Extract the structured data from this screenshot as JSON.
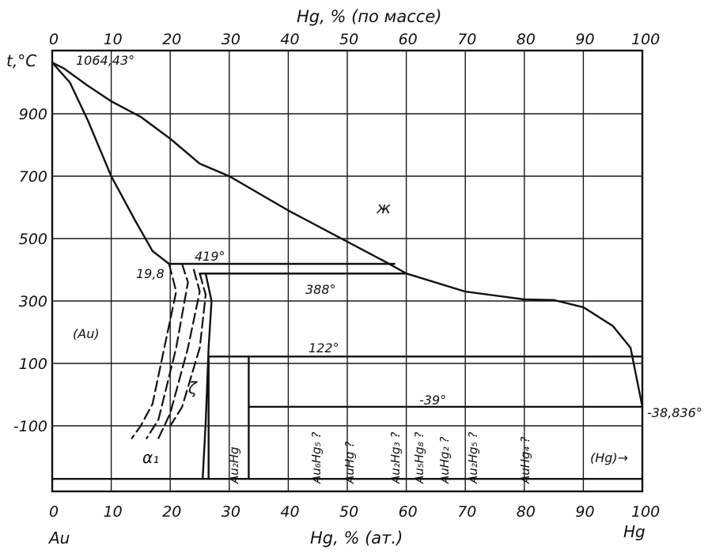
{
  "chart_data": {
    "type": "line",
    "title": "",
    "x_top_label": "Hg, % (по массе)",
    "x_bottom_label": "Hg, % (ат.)",
    "y_label": "t,°C",
    "left_component": "Au",
    "right_component": "Hg",
    "x_ticks": [
      0,
      10,
      20,
      30,
      40,
      50,
      60,
      70,
      80,
      90,
      100
    ],
    "x_top_ticks": [
      0,
      10,
      20,
      30,
      40,
      50,
      60,
      70,
      80,
      90,
      100
    ],
    "y_ticks": [
      900,
      700,
      500,
      300,
      100,
      -100
    ],
    "xlim": [
      0,
      100
    ],
    "ylim": [
      -280,
      1100
    ],
    "grid": true,
    "annotations": {
      "au_melting": "1064,43°",
      "peritectic_419": "419°",
      "peritectic_388": "388°",
      "peritectic_122": "122°",
      "eutectic_minus39": "-39°",
      "hg_melting": "-38,836°",
      "solubility": "19,8",
      "liquid_phase": "ж",
      "au_solid_solution": "(Au)",
      "zeta_phase": "ζ",
      "alpha1_phase": "α₁",
      "hg_phase": "(Hg)→"
    },
    "compounds": [
      {
        "label": "Au₂Hg",
        "x": 33.3
      },
      {
        "label": "Au₆Hg₅ ?",
        "x": 45.5
      },
      {
        "label": "AuHg ?",
        "x": 50
      },
      {
        "label": "Au₂Hg₃ ?",
        "x": 60
      },
      {
        "label": "Au₅Hg₈ ?",
        "x": 61.5
      },
      {
        "label": "AuHg₂ ?",
        "x": 66.7
      },
      {
        "label": "Au₂Hg₅ ?",
        "x": 71.4
      },
      {
        "label": "AuHg₄ ?",
        "x": 80
      }
    ],
    "series": [
      {
        "values": [
          [
            0,
            1064
          ],
          [
            2,
            1045
          ],
          [
            6,
            990
          ],
          [
            10,
            940
          ],
          [
            15,
            890
          ],
          [
            20,
            820
          ],
          [
            25,
            740
          ],
          [
            30,
            700
          ],
          [
            40,
            590
          ],
          [
            50,
            490
          ],
          [
            57,
            420
          ],
          [
            60,
            388
          ],
          [
            70,
            330
          ],
          [
            80,
            305
          ],
          [
            85,
            303
          ],
          [
            90,
            280
          ],
          [
            95,
            220
          ],
          [
            98,
            150
          ],
          [
            100,
            -39
          ]
        ]
      },
      {
        "values": [
          [
            0,
            1064
          ],
          [
            3,
            1000
          ],
          [
            6,
            880
          ],
          [
            10,
            700
          ],
          [
            14,
            560
          ],
          [
            17,
            460
          ],
          [
            19.8,
            419
          ]
        ]
      },
      {
        "values": [
          [
            19.8,
            419
          ],
          [
            21,
            330
          ],
          [
            19,
            150
          ],
          [
            17,
            -30
          ],
          [
            15,
            -100
          ],
          [
            13.5,
            -140
          ]
        ]
      },
      {
        "values": [
          [
            22,
            419
          ],
          [
            23,
            360
          ],
          [
            21,
            150
          ],
          [
            18,
            -80
          ],
          [
            16,
            -140
          ]
        ]
      },
      {
        "values": [
          [
            24,
            400
          ],
          [
            25,
            330
          ],
          [
            23,
            150
          ],
          [
            20,
            -60
          ],
          [
            18,
            -140
          ]
        ]
      },
      {
        "values": [
          [
            25,
            388
          ],
          [
            26,
            320
          ],
          [
            25,
            150
          ],
          [
            22,
            -40
          ],
          [
            20,
            -100
          ]
        ]
      },
      {
        "values": [
          [
            26,
            388
          ],
          [
            27,
            300
          ],
          [
            26.5,
            150
          ],
          [
            26,
            -90
          ],
          [
            25.5,
            -270
          ]
        ]
      }
    ],
    "horizontals": [
      {
        "temp": 419,
        "x": [
          19.8,
          58
        ]
      },
      {
        "temp": 388,
        "x": [
          25,
          60
        ]
      },
      {
        "temp": 122,
        "x": [
          26.5,
          100
        ]
      },
      {
        "temp": -39,
        "x": [
          33.3,
          100
        ]
      },
      {
        "temp": -270,
        "x": [
          0,
          100
        ]
      }
    ]
  }
}
